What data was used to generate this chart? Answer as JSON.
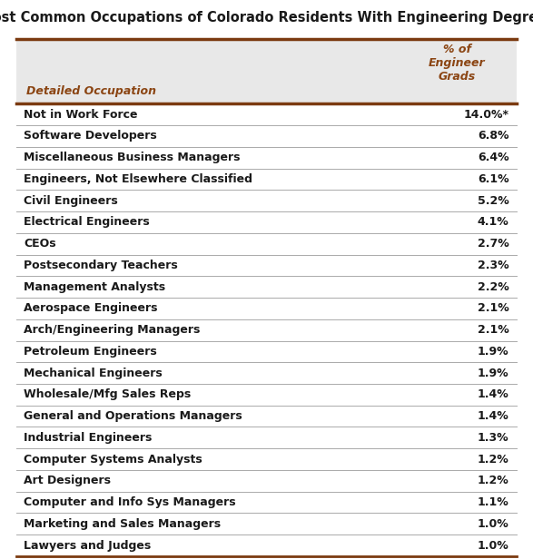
{
  "title": "Most Common Occupations of Colorado Residents With Engineering Degrees",
  "col1_header": "Detailed Occupation",
  "col2_header": "% of\nEngineer\nGrads",
  "occupations": [
    "Not in Work Force",
    "Software Developers",
    "Miscellaneous Business Managers",
    "Engineers, Not Elsewhere Classified",
    "Civil Engineers",
    "Electrical Engineers",
    "CEOs",
    "Postsecondary Teachers",
    "Management Analysts",
    "Aerospace Engineers",
    "Arch/Engineering Managers",
    "Petroleum Engineers",
    "Mechanical Engineers",
    "Wholesale/Mfg Sales Reps",
    "General and Operations Managers",
    "Industrial Engineers",
    "Computer Systems Analysts",
    "Art Designers",
    "Computer and Info Sys Managers",
    "Marketing and Sales Managers",
    "Lawyers and Judges"
  ],
  "percentages": [
    "14.0%*",
    "6.8%",
    "6.4%",
    "6.1%",
    "5.2%",
    "4.1%",
    "2.7%",
    "2.3%",
    "2.2%",
    "2.1%",
    "2.1%",
    "1.9%",
    "1.9%",
    "1.4%",
    "1.4%",
    "1.3%",
    "1.2%",
    "1.2%",
    "1.1%",
    "1.0%",
    "1.0%"
  ],
  "header_bg_color": "#e8e8e8",
  "header_text_color": "#8B4513",
  "body_text_color": "#1a1a1a",
  "title_color": "#1a1a1a",
  "border_color": "#7B3A10",
  "row_line_color": "#aaaaaa",
  "title_fontsize": 10.5,
  "header_fontsize": 9.0,
  "body_fontsize": 9.0
}
